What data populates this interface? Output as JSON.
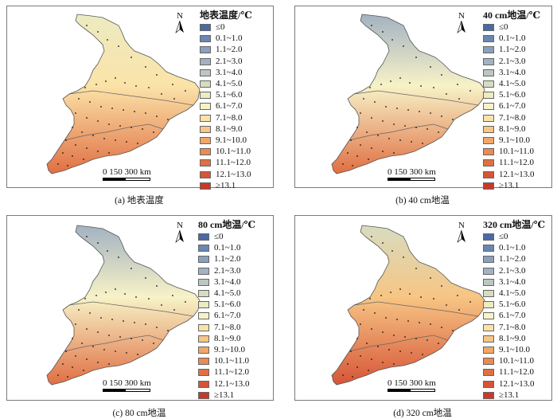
{
  "panels": [
    {
      "id": "a",
      "legend_title": "地表温度/℃",
      "caption": "(a) 地表温度",
      "palette": "surface"
    },
    {
      "id": "b",
      "legend_title": "40 cm地温/℃",
      "caption": "(b) 40 cm地温",
      "palette": "d40"
    },
    {
      "id": "c",
      "legend_title": "80 cm地温/℃",
      "caption": "(c) 80 cm地温",
      "palette": "d80"
    },
    {
      "id": "d",
      "legend_title": "320 cm地温/℃",
      "caption": "(d) 320 cm地温",
      "palette": "d320"
    }
  ],
  "legend": {
    "labels": [
      "≤0",
      "0.1~1.0",
      "1.1~2.0",
      "2.1~3.0",
      "3.1~4.0",
      "4.1~5.0",
      "5.1~6.0",
      "6.1~7.0",
      "7.1~8.0",
      "8.1~9.0",
      "9.1~10.0",
      "10.1~11.0",
      "11.1~12.0",
      "12.1~13.0",
      "≥13.1"
    ],
    "colors": [
      "#4a6aa3",
      "#6a87b3",
      "#8aa0bf",
      "#a3b2c2",
      "#bcc6c3",
      "#d7dcc0",
      "#ecebc2",
      "#f7f2c7",
      "#fbe3a8",
      "#f7c584",
      "#f2a768",
      "#ea8a54",
      "#e06f43",
      "#d65538",
      "#c9382b"
    ]
  },
  "north_arrow": {
    "letter": "N",
    "icon": "north-arrow-icon"
  },
  "scale_bar": {
    "label": "0  150 300 km"
  },
  "map_fill_classes": {
    "surface": {
      "north": 6,
      "mid": 8,
      "south": 12
    },
    "d40": {
      "north": 3,
      "mid": 7,
      "south": 12
    },
    "d80": {
      "north": 3,
      "mid": 7,
      "south": 12
    },
    "d320": {
      "north": 5,
      "mid": 9,
      "south": 13
    }
  }
}
